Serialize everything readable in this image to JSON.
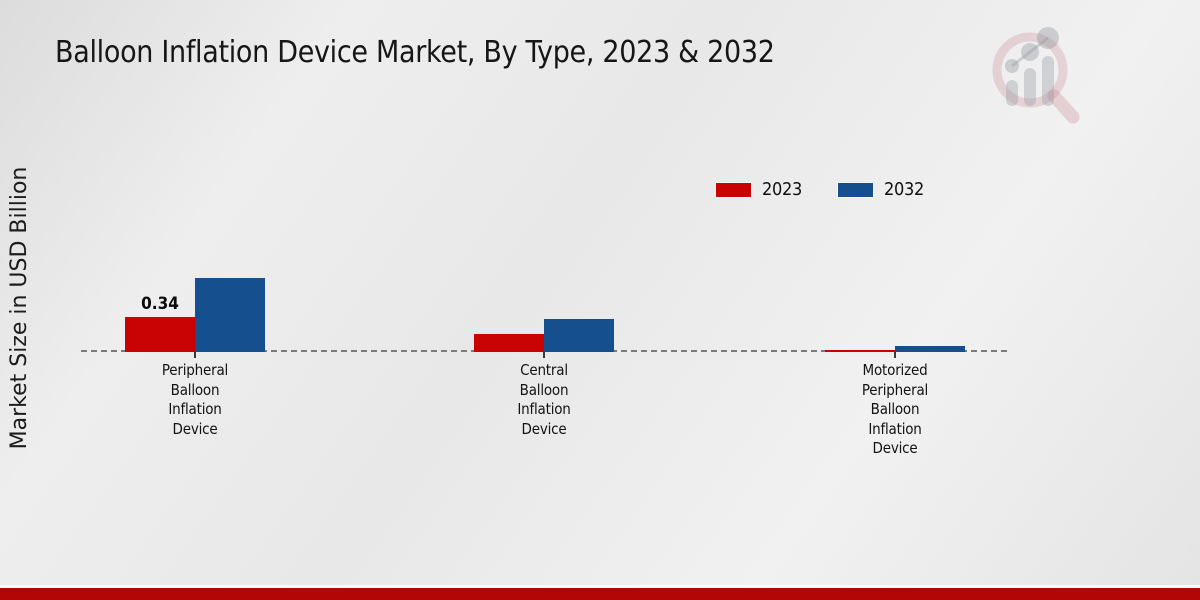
{
  "title": "Balloon Inflation Device Market, By Type, 2023 & 2032",
  "ylabel": "Market Size in USD Billion",
  "colors": {
    "series_2023": "#c90303",
    "series_2032": "#164f8d",
    "footer_bar": "#b20505",
    "baseline_dash": "#7b7b7b",
    "background": "#e9e9e9"
  },
  "legend": {
    "position": "top-right",
    "items": [
      {
        "label": "2023",
        "color": "#c90303"
      },
      {
        "label": "2032",
        "color": "#164f8d"
      }
    ]
  },
  "watermark_icon": "market-research-magnifier-logo",
  "chart_data": {
    "type": "bar",
    "title": "Balloon Inflation Device Market, By Type, 2023 & 2032",
    "xlabel": "",
    "ylabel": "Market Size in USD Billion",
    "categories": [
      "Peripheral Balloon Inflation Device",
      "Central Balloon Inflation Device",
      "Motorized Peripheral Balloon Inflation Device"
    ],
    "series": [
      {
        "name": "2023",
        "color": "#c90303",
        "values": [
          0.34,
          0.18,
          0.02
        ]
      },
      {
        "name": "2032",
        "color": "#164f8d",
        "values": [
          0.73,
          0.32,
          0.06
        ]
      }
    ],
    "ylim": [
      0,
      0.8
    ],
    "grid": false,
    "axis_style": "dashed zero baseline only, no y-axis ticks",
    "value_labels_shown": [
      {
        "series": "2023",
        "category_index": 0,
        "text": "0.34"
      }
    ]
  }
}
